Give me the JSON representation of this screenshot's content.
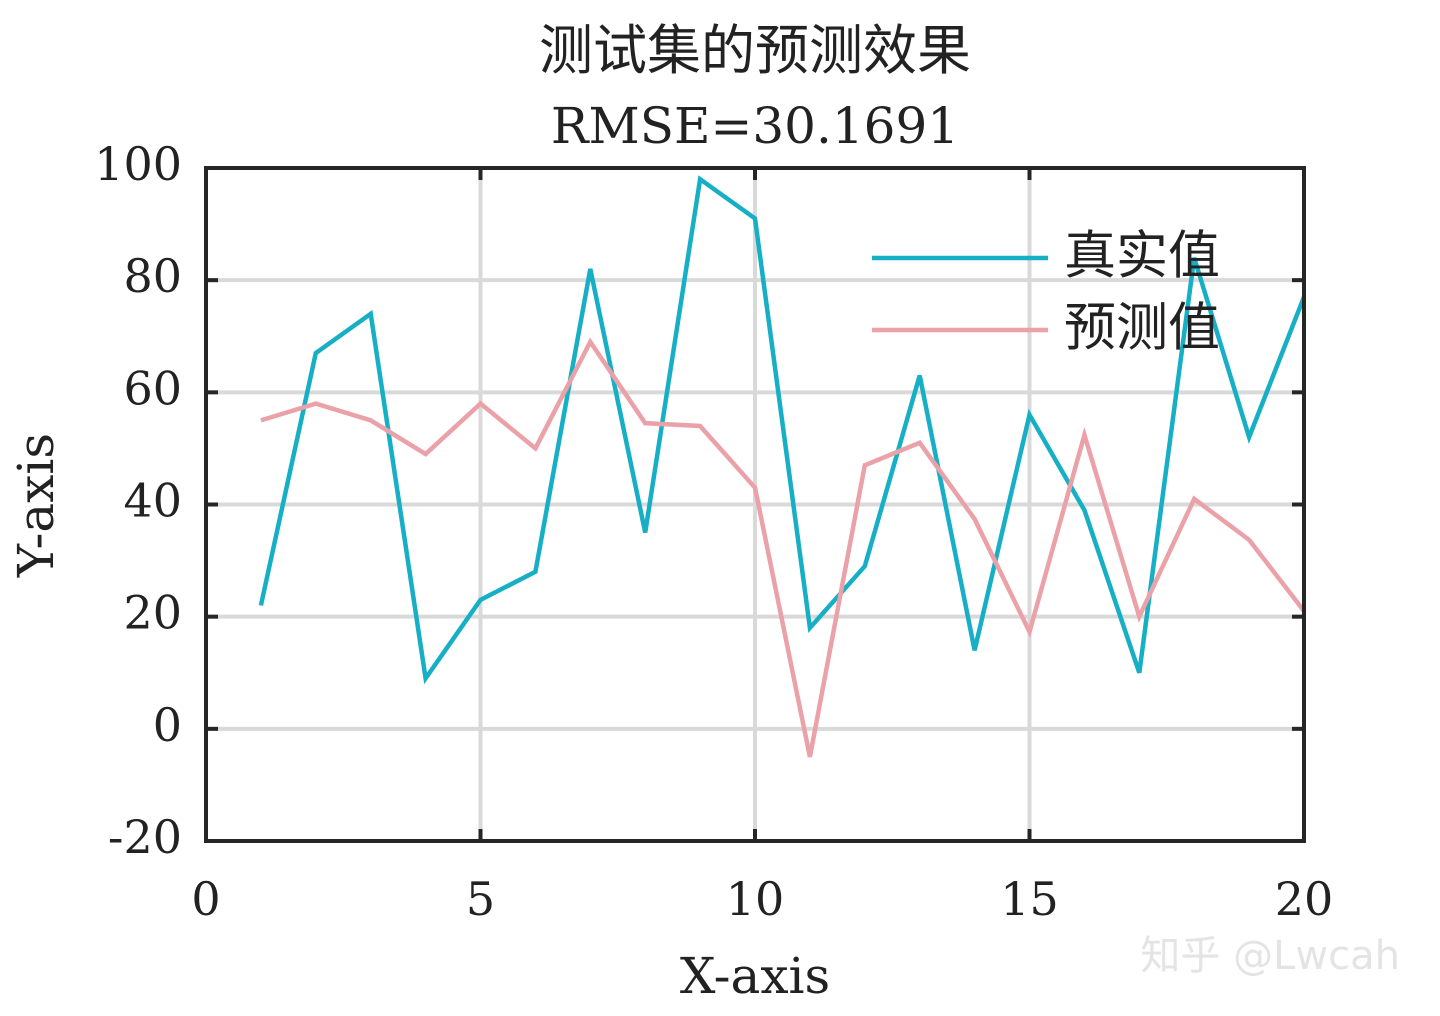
{
  "chart_data": {
    "type": "line",
    "title": "测试集的预测效果",
    "subtitle": "RMSE=30.1691",
    "x_label": "X-axis",
    "y_label": "Y-axis",
    "x": [
      1,
      2,
      3,
      4,
      5,
      6,
      7,
      8,
      9,
      10,
      11,
      12,
      13,
      14,
      15,
      16,
      17,
      18,
      19,
      20
    ],
    "series": [
      {
        "name": "真实值",
        "color": "#17afc6",
        "values": [
          22,
          67,
          74,
          9,
          23,
          28,
          82,
          35,
          98,
          91,
          18,
          29,
          63,
          14,
          56,
          39,
          10,
          84,
          52,
          77
        ]
      },
      {
        "name": "预测值",
        "color": "#eaa1a8",
        "values": [
          55,
          58,
          55,
          49,
          58,
          50,
          69,
          54.5,
          54,
          43,
          -5,
          47,
          51,
          37.4,
          17.3,
          52.4,
          20,
          41,
          33.7,
          21
        ]
      }
    ],
    "xlim": [
      0,
      20
    ],
    "xticks": [
      0,
      5,
      10,
      15,
      20
    ],
    "ylim": [
      -20,
      100
    ],
    "yticks": [
      -20,
      0,
      20,
      40,
      60,
      80,
      100
    ],
    "grid": true,
    "legend": "upper right"
  },
  "watermark": "知乎 @Lwcah"
}
